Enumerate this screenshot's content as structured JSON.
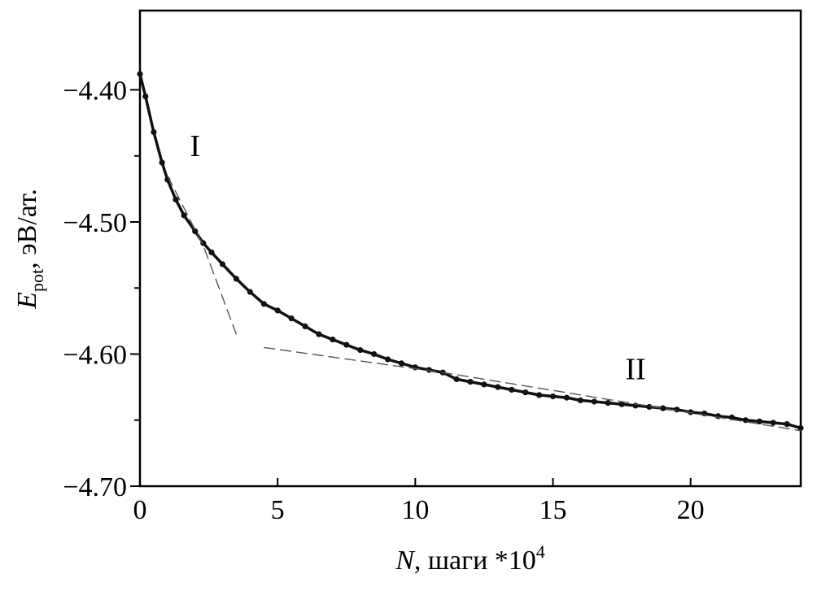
{
  "chart_data": {
    "type": "line",
    "xlabel": {
      "var": "N",
      "rest": ", шаги *10",
      "sup": "4"
    },
    "ylabel": {
      "var": "E",
      "sub": "pot",
      "rest": ",  эВ/ат."
    },
    "xlim": [
      0,
      24
    ],
    "ylim": [
      -4.7,
      -4.34
    ],
    "xticks": [
      0,
      5,
      10,
      15,
      20
    ],
    "xtick_labels": [
      "0",
      "5",
      "10",
      "15",
      "20"
    ],
    "yticks": [
      -4.4,
      -4.5,
      -4.6,
      -4.7
    ],
    "ytick_labels": [
      "−4.40",
      "−4.50",
      "−4.60",
      "−4.70"
    ],
    "annotations": [
      {
        "text": "I",
        "x": 2.0,
        "y": -4.45
      },
      {
        "text": "II",
        "x": 18.0,
        "y": -4.619
      }
    ],
    "grid": false,
    "series": [
      {
        "style": "solid-markers",
        "color": "#111111",
        "x": [
          0,
          0.2,
          0.5,
          0.8,
          1.0,
          1.3,
          1.6,
          2.0,
          2.3,
          2.6,
          3.0,
          3.5,
          4.0,
          4.5,
          5.0,
          5.5,
          6.0,
          6.5,
          7.0,
          7.5,
          8.0,
          8.5,
          9.0,
          9.5,
          10.0,
          10.5,
          11.0,
          11.5,
          12.0,
          12.5,
          13.0,
          13.5,
          14.0,
          14.5,
          15.0,
          15.5,
          16.0,
          16.5,
          17.0,
          17.5,
          18.0,
          18.5,
          19.0,
          19.5,
          20.0,
          20.5,
          21.0,
          21.5,
          22.0,
          22.5,
          23.0,
          23.5,
          24.0
        ],
        "y": [
          -4.388,
          -4.405,
          -4.432,
          -4.455,
          -4.468,
          -4.483,
          -4.495,
          -4.507,
          -4.516,
          -4.523,
          -4.532,
          -4.543,
          -4.553,
          -4.562,
          -4.567,
          -4.573,
          -4.579,
          -4.585,
          -4.589,
          -4.593,
          -4.597,
          -4.6,
          -4.604,
          -4.607,
          -4.61,
          -4.612,
          -4.614,
          -4.619,
          -4.621,
          -4.623,
          -4.625,
          -4.627,
          -4.629,
          -4.631,
          -4.632,
          -4.633,
          -4.635,
          -4.636,
          -4.637,
          -4.638,
          -4.639,
          -4.64,
          -4.641,
          -4.642,
          -4.644,
          -4.645,
          -4.647,
          -4.648,
          -4.65,
          -4.651,
          -4.652,
          -4.653,
          -4.656
        ]
      },
      {
        "style": "dashed",
        "color": "#555555",
        "x": [
          1.0,
          2.3,
          3.5
        ],
        "y": [
          -4.465,
          -4.518,
          -4.585
        ]
      },
      {
        "style": "dashed",
        "color": "#555555",
        "x": [
          4.5,
          11.0,
          24.0
        ],
        "y": [
          -4.595,
          -4.614,
          -4.658
        ]
      }
    ]
  }
}
